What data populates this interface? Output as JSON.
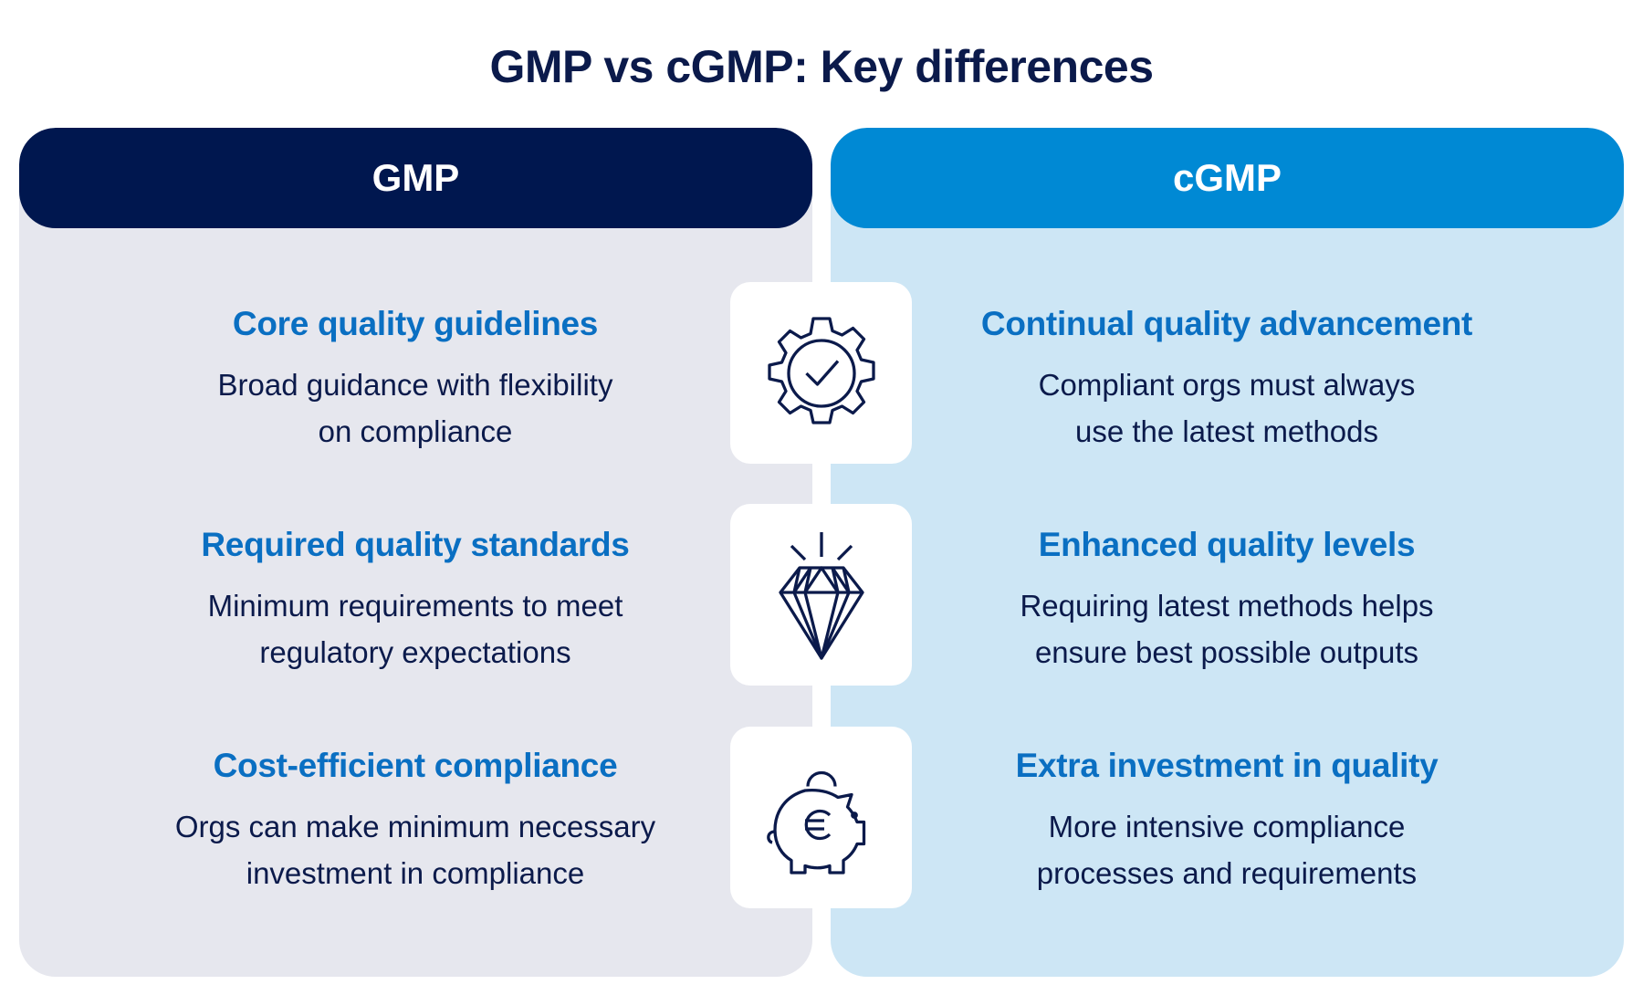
{
  "title": "GMP vs cGMP: Key differences",
  "colors": {
    "gmp": "#00174f",
    "cgmp": "#0089d4",
    "heading": "#0a6fc2"
  },
  "columns": [
    {
      "label": "GMP",
      "items": [
        {
          "heading": "Core quality guidelines",
          "lines": [
            "Broad guidance with flexibility",
            "on compliance"
          ]
        },
        {
          "heading": "Required quality standards",
          "lines": [
            "Minimum requirements to meet",
            "regulatory expectations"
          ]
        },
        {
          "heading": "Cost-efficient compliance",
          "lines": [
            "Orgs can make minimum necessary",
            "investment in compliance"
          ]
        }
      ]
    },
    {
      "label": "cGMP",
      "items": [
        {
          "heading": "Continual quality advancement",
          "lines": [
            "Compliant orgs must always",
            "use the latest methods"
          ]
        },
        {
          "heading": "Enhanced quality levels",
          "lines": [
            "Requiring latest methods helps",
            "ensure best possible outputs"
          ]
        },
        {
          "heading": "Extra investment in quality",
          "lines": [
            "More intensive compliance",
            "processes and requirements"
          ]
        }
      ]
    }
  ],
  "icons": [
    "gear-check-icon",
    "diamond-icon",
    "piggy-bank-euro-icon"
  ]
}
